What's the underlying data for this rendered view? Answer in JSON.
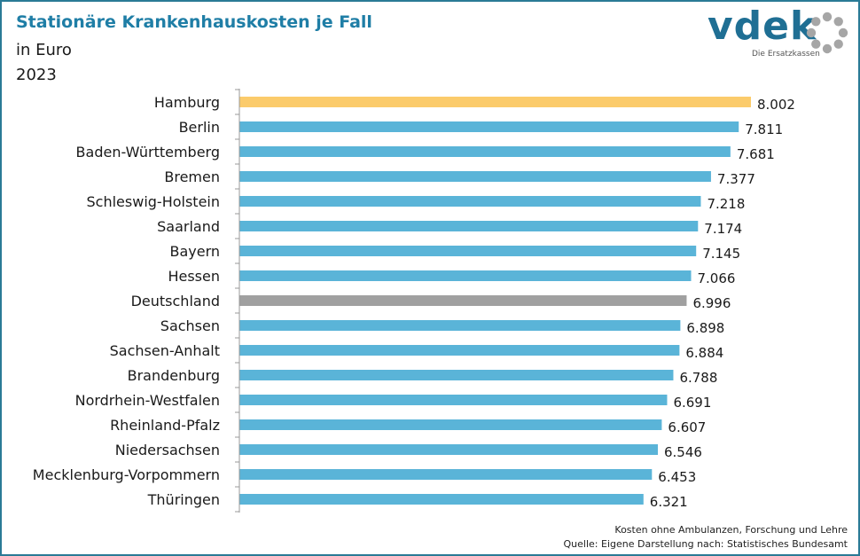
{
  "header": {
    "title": "Stationäre Krankenhauskosten je Fall",
    "subtitle": "in Euro",
    "year": "2023"
  },
  "logo": {
    "brand": "vdek",
    "tagline": "Die Ersatzkassen",
    "brand_color": "#1f6f94",
    "ring_color": "#a6a6a6"
  },
  "footer": {
    "note": "Kosten ohne Ambulanzen, Forschung und Lehre",
    "source": "Quelle: Eigene Darstellung nach: Statistisches Bundesamt"
  },
  "chart_data": {
    "type": "bar",
    "orientation": "horizontal",
    "categories": [
      "Hamburg",
      "Berlin",
      "Baden-Württemberg",
      "Bremen",
      "Schleswig-Holstein",
      "Saarland",
      "Bayern",
      "Hessen",
      "Deutschland",
      "Sachsen",
      "Sachsen-Anhalt",
      "Brandenburg",
      "Nordrhein-Westfalen",
      "Rheinland-Pfalz",
      "Niedersachsen",
      "Mecklenburg-Vorpommern",
      "Thüringen"
    ],
    "values": [
      8002,
      7811,
      7681,
      7377,
      7218,
      7174,
      7145,
      7066,
      6996,
      6898,
      6884,
      6788,
      6691,
      6607,
      6546,
      6453,
      6321
    ],
    "data_labels": [
      "8.002",
      "7.811",
      "7.681",
      "7.377",
      "7.218",
      "7.174",
      "7.145",
      "7.066",
      "6.996",
      "6.898",
      "6.884",
      "6.788",
      "6.691",
      "6.607",
      "6.546",
      "6.453",
      "6.321"
    ],
    "xlim": [
      0,
      8002
    ],
    "grid": false,
    "colors": {
      "default": "#5ab4d8",
      "highlight": "#fbcb6b",
      "average": "#a0a0a0",
      "axis": "#999999"
    },
    "highlight_category": "Hamburg",
    "average_category": "Deutschland"
  }
}
